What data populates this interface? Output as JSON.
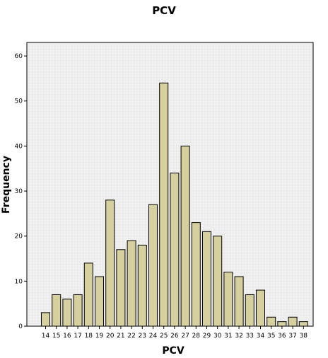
{
  "chart_data": {
    "type": "bar",
    "title": "PCV",
    "xlabel": "PCV",
    "ylabel": "Frequency",
    "categories": [
      "14",
      "15",
      "16",
      "17",
      "18",
      "19",
      "20",
      "21",
      "22",
      "23",
      "24",
      "25",
      "26",
      "27",
      "28",
      "29",
      "30",
      "31",
      "32",
      "33",
      "34",
      "35",
      "36",
      "37",
      "38"
    ],
    "values": [
      3,
      7,
      6,
      7,
      14,
      11,
      28,
      17,
      19,
      18,
      27,
      54,
      34,
      40,
      23,
      21,
      20,
      12,
      11,
      7,
      8,
      2,
      1,
      2,
      1
    ],
    "ylim": [
      0,
      63
    ],
    "yticks": [
      0,
      10,
      20,
      30,
      40,
      50,
      60
    ],
    "grid": false,
    "colors": {
      "bar_fill": "#d6d09e",
      "bar_stroke": "#000000",
      "plot_bg": "#eeeeee"
    }
  }
}
